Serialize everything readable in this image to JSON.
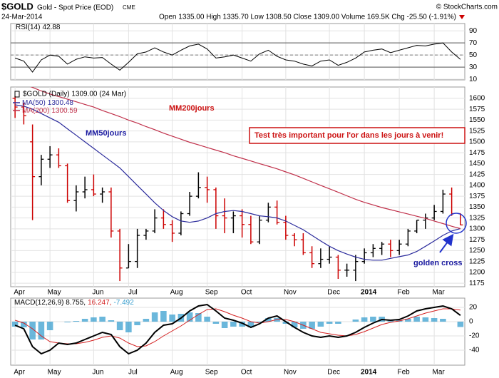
{
  "header": {
    "symbol": "$GOLD",
    "name": "Gold - Spot Price (EOD)",
    "exchange": "CME",
    "source": "© StockCharts.com",
    "date": "24-Mar-2014",
    "stats": "Open 1335.00  High 1335.70  Low 1308.50  Close 1309.00  Volume 169.5K  Chg -25.50 (-1.91%)"
  },
  "annotations": {
    "ma200": "MM200jours",
    "ma50": "MM50jours",
    "box": "Test très important pour l'or dans les jours à venir!",
    "cross": "golden cross"
  },
  "chart_data": [
    {
      "type": "line",
      "series": [
        {
          "name": "RSI(14)",
          "color": "#000000",
          "values": [
            45,
            40,
            22,
            42,
            50,
            48,
            35,
            43,
            47,
            45,
            46,
            35,
            25,
            38,
            52,
            55,
            62,
            55,
            50,
            58,
            65,
            68,
            60,
            45,
            47,
            50,
            45,
            40,
            52,
            58,
            48,
            42,
            40,
            35,
            32,
            40,
            42,
            33,
            38,
            45,
            55,
            58,
            60,
            54,
            58,
            62,
            66,
            65,
            68,
            70,
            55,
            42.88
          ]
        }
      ],
      "ylim": [
        9,
        102
      ],
      "yticks": [
        10,
        30,
        50,
        70,
        90
      ],
      "bands": [
        30,
        70
      ],
      "midline": 50
    },
    {
      "type": "ohlc",
      "label": "$GOLD (Daily) 1309.00 (24 Mar)",
      "up_color": "#000000",
      "down_color": "#cc0000",
      "grid": true,
      "categories": [
        "Apr",
        null,
        null,
        null,
        "May",
        null,
        null,
        null,
        null,
        "Jun",
        null,
        null,
        null,
        "Jul",
        null,
        null,
        null,
        null,
        "Aug",
        null,
        null,
        null,
        "Sep",
        null,
        null,
        null,
        "Oct",
        null,
        null,
        null,
        null,
        "Nov",
        null,
        null,
        null,
        null,
        "Dec",
        null,
        null,
        null,
        "2014",
        null,
        null,
        null,
        "Feb",
        null,
        null,
        null,
        "Mar",
        null,
        null,
        null
      ],
      "open": [
        1600,
        1580,
        1500,
        1420,
        1460,
        1470,
        1445,
        1365,
        1385,
        1390,
        1380,
        1385,
        1295,
        1210,
        1225,
        1285,
        1295,
        1325,
        1310,
        1290,
        1335,
        1375,
        1395,
        1390,
        1330,
        1325,
        1330,
        1310,
        1270,
        1320,
        1350,
        1315,
        1285,
        1275,
        1245,
        1220,
        1230,
        1235,
        1205,
        1205,
        1225,
        1245,
        1255,
        1265,
        1250,
        1265,
        1295,
        1320,
        1325,
        1340,
        1380,
        1335
      ],
      "high": [
        1605,
        1590,
        1540,
        1470,
        1490,
        1485,
        1450,
        1400,
        1420,
        1425,
        1395,
        1395,
        1300,
        1265,
        1300,
        1300,
        1345,
        1345,
        1320,
        1340,
        1385,
        1430,
        1420,
        1395,
        1370,
        1340,
        1345,
        1330,
        1330,
        1360,
        1365,
        1330,
        1290,
        1290,
        1260,
        1255,
        1260,
        1240,
        1220,
        1240,
        1255,
        1265,
        1270,
        1275,
        1275,
        1300,
        1320,
        1335,
        1355,
        1390,
        1395,
        1335.7
      ],
      "low": [
        1555,
        1540,
        1320,
        1400,
        1440,
        1440,
        1360,
        1340,
        1370,
        1375,
        1360,
        1280,
        1180,
        1210,
        1210,
        1275,
        1290,
        1300,
        1270,
        1285,
        1330,
        1370,
        1360,
        1300,
        1290,
        1290,
        1280,
        1265,
        1265,
        1315,
        1310,
        1275,
        1260,
        1240,
        1210,
        1210,
        1220,
        1185,
        1190,
        1180,
        1220,
        1235,
        1240,
        1235,
        1240,
        1260,
        1290,
        1300,
        1320,
        1335,
        1330,
        1308.5
      ],
      "close": [
        1580,
        1560,
        1420,
        1460,
        1470,
        1445,
        1365,
        1385,
        1390,
        1380,
        1385,
        1295,
        1210,
        1225,
        1285,
        1295,
        1325,
        1310,
        1290,
        1335,
        1375,
        1395,
        1390,
        1330,
        1325,
        1330,
        1310,
        1270,
        1320,
        1350,
        1315,
        1285,
        1275,
        1245,
        1220,
        1230,
        1235,
        1205,
        1205,
        1225,
        1245,
        1255,
        1265,
        1250,
        1265,
        1295,
        1320,
        1325,
        1340,
        1380,
        1335,
        1309
      ],
      "series": [
        {
          "name": "MA(50)",
          "color": "#2b2b9c",
          "values": [
            1585,
            1582,
            1575,
            1565,
            1555,
            1545,
            1530,
            1515,
            1500,
            1485,
            1470,
            1455,
            1440,
            1420,
            1400,
            1380,
            1360,
            1342,
            1328,
            1318,
            1315,
            1318,
            1325,
            1335,
            1340,
            1342,
            1340,
            1335,
            1330,
            1328,
            1325,
            1318,
            1308,
            1298,
            1285,
            1272,
            1260,
            1250,
            1242,
            1235,
            1230,
            1228,
            1228,
            1232,
            1236,
            1240,
            1248,
            1260,
            1272,
            1285,
            1295,
            1300.48
          ]
        },
        {
          "name": "MA(200)",
          "color": "#c0304a",
          "values": [
            1640,
            1632,
            1625,
            1617,
            1610,
            1604,
            1598,
            1592,
            1586,
            1580,
            1572,
            1565,
            1558,
            1550,
            1543,
            1535,
            1528,
            1520,
            1513,
            1506,
            1499,
            1493,
            1487,
            1481,
            1475,
            1468,
            1462,
            1456,
            1450,
            1444,
            1438,
            1431,
            1424,
            1416,
            1408,
            1400,
            1392,
            1384,
            1376,
            1368,
            1361,
            1355,
            1349,
            1344,
            1339,
            1334,
            1329,
            1324,
            1318,
            1312,
            1306,
            1300.59
          ]
        }
      ],
      "ylim": [
        1167,
        1626
      ],
      "yticks": [
        1175,
        1200,
        1225,
        1250,
        1275,
        1300,
        1325,
        1350,
        1375,
        1400,
        1425,
        1450,
        1475,
        1500,
        1525,
        1550,
        1575,
        1600
      ]
    },
    {
      "type": "macd",
      "legend": [
        "MACD(12,26,9) 8.755,",
        "16.247,",
        "-7.492"
      ],
      "series": [
        {
          "name": "MACD",
          "color": "#000000",
          "values": [
            -5,
            -10,
            -35,
            -45,
            -40,
            -30,
            -32,
            -30,
            -25,
            -20,
            -15,
            -18,
            -35,
            -45,
            -40,
            -30,
            -15,
            -5,
            -3,
            5,
            15,
            22,
            24,
            15,
            5,
            2,
            -2,
            -8,
            -3,
            5,
            8,
            0,
            -8,
            -15,
            -20,
            -22,
            -20,
            -22,
            -20,
            -15,
            -8,
            -2,
            3,
            2,
            3,
            8,
            15,
            18,
            20,
            22,
            18,
            8.755
          ]
        },
        {
          "name": "Signal",
          "color": "#d42020",
          "values": [
            2,
            -2,
            -10,
            -20,
            -28,
            -30,
            -31,
            -31,
            -29,
            -26,
            -22,
            -20,
            -23,
            -30,
            -35,
            -34,
            -28,
            -20,
            -13,
            -6,
            2,
            10,
            17,
            18,
            14,
            9,
            5,
            0,
            -2,
            0,
            3,
            3,
            0,
            -5,
            -10,
            -15,
            -17,
            -19,
            -20,
            -18,
            -14,
            -9,
            -4,
            -1,
            1,
            4,
            8,
            12,
            15,
            18,
            18,
            16.247
          ]
        },
        {
          "name": "Histogram",
          "color": "#3a9fcf",
          "values": [
            -7,
            -8,
            -25,
            -25,
            -12,
            0,
            -1,
            1,
            4,
            6,
            7,
            2,
            -12,
            -15,
            -5,
            4,
            13,
            15,
            10,
            11,
            13,
            12,
            7,
            -3,
            -9,
            -7,
            -7,
            -8,
            -1,
            5,
            5,
            -3,
            -8,
            -10,
            -10,
            -7,
            -3,
            -3,
            0,
            3,
            6,
            7,
            7,
            3,
            2,
            4,
            7,
            6,
            5,
            4,
            0,
            -7.492
          ]
        }
      ],
      "ylim": [
        -61,
        33
      ],
      "yticks": [
        -40,
        -20,
        0,
        20
      ]
    }
  ]
}
